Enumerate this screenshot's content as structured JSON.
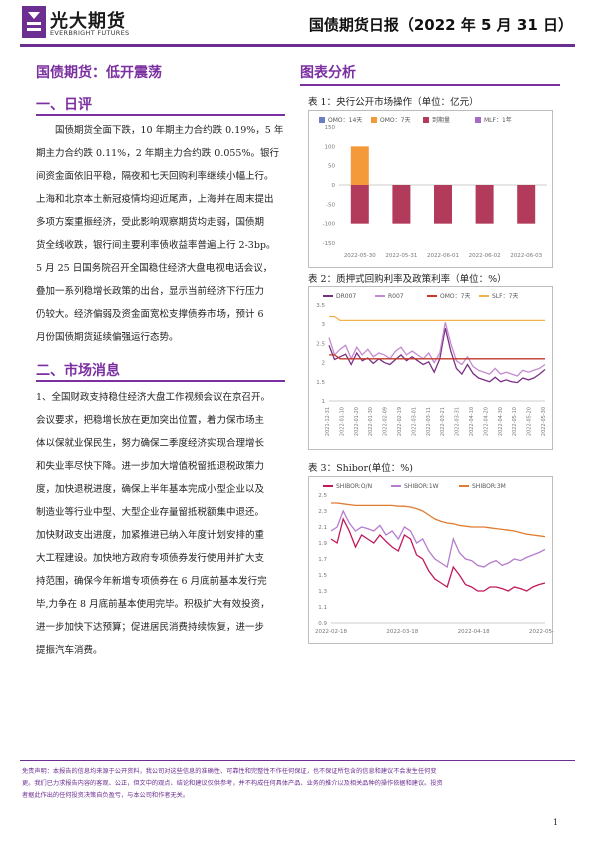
{
  "header": {
    "brand_cn": "光大期货",
    "brand_en": "EVERBRIGHT FUTURES",
    "report_title": "国债期货日报（2022 年 5 月 31 日）"
  },
  "main": {
    "title": "国债期货：低开震荡",
    "sections": [
      {
        "heading": "一、日评",
        "lines": [
          "国债期货全面下跌，10 年期主力合约跌 0.19%，5 年",
          "期主力合约跌 0.11%，2 年期主力合约跌 0.055%。银行",
          "间资金面依旧平稳，隔夜和七天回购利率继续小幅上行。",
          "上海和北京本土新冠疫情均迎近尾声，上海并在周末提出",
          "多项方案重振经济，受此影响观察期货均走弱，国债期",
          "货全线收跌，银行间主要利率债收益率普遍上行 2-3bp。",
          "5 月 25 日国务院召开全国稳住经济大盘电视电话会议，",
          "叠加一系列稳增长政策的出台，显示当前经济下行压力",
          "仍较大。经济偏弱及资金面宽松支撑债券市场，预计 6",
          "月份国债期货延续偏强运行态势。"
        ]
      },
      {
        "heading": "二、市场消息",
        "lines": [
          "1、全国财政支持稳住经济大盘工作视频会议在京召开。",
          "会议要求，把稳增长放在更加突出位置，着力保市场主",
          "体以保就业保民生，努力确保二季度经济实现合理增长",
          "和失业率尽快下降。进一步加大增值税留抵退税政策力",
          "度，加快退税进度，确保上半年基本完成小型企业以及",
          "制造业等行业中型、大型企业存量留抵税额集中退还。",
          "加快财政支出进度，加紧推进已纳入年度计划安排的重",
          "大工程建设。加快地方政府专项债券发行使用并扩大支",
          "持范围，确保今年新增专项债券在 6 月底前基本发行完",
          "毕,力争在 8 月底前基本使用完毕。积极扩大有效投资，",
          "进一步加快下达预算；促进居民消费持续恢复，进一步",
          "提振汽车消费。"
        ]
      }
    ]
  },
  "charts_heading": "图表分析",
  "chart_data": [
    {
      "caption": "表 1：央行公开市场操作（单位：亿元）",
      "type": "bar",
      "legend": [
        "OMO：14天",
        "OMO：7天",
        "到期量",
        "MLF：1年"
      ],
      "colors": [
        "#6b7fc2",
        "#f59a3a",
        "#b23a5b",
        "#a46bc4"
      ],
      "categories": [
        "2022-05-30",
        "2022-05-31",
        "2022-06-01",
        "2022-06-02",
        "2022-06-03"
      ],
      "series": [
        {
          "name": "OMO：7天",
          "values": [
            100,
            0,
            0,
            0,
            0
          ]
        },
        {
          "name": "到期量",
          "values": [
            -100,
            -100,
            -100,
            -100,
            -100
          ]
        }
      ],
      "yticks": [
        "150",
        "100",
        "50",
        "0",
        "-50",
        "-100",
        "-150"
      ],
      "ylim": [
        -150,
        150
      ]
    },
    {
      "caption": "表 2：质押式回购利率及政策利率（单位：%）",
      "type": "line",
      "legend": [
        "DR007",
        "R007",
        "OMO：7天",
        "SLF：7天"
      ],
      "colors": [
        "#7a2f85",
        "#c58ad1",
        "#c0392b",
        "#f2b14a"
      ],
      "yticks": [
        "3.5",
        "3",
        "2.5",
        "2",
        "1.5",
        "1"
      ],
      "ylim": [
        1,
        3.5
      ],
      "xticks": [
        "2021-12-31",
        "2022-01-10",
        "2022-01-20",
        "2022-01-30",
        "2022-02-09",
        "2022-02-19",
        "2022-03-01",
        "2022-03-11",
        "2022-03-21",
        "2022-03-31",
        "2022-04-10",
        "2022-04-20",
        "2022-04-30",
        "2022-05-10",
        "2022-05-20",
        "2022-05-30"
      ],
      "series": [
        {
          "name": "DR007",
          "values": [
            2.45,
            2.08,
            2.15,
            2.22,
            1.95,
            2.25,
            2.05,
            2.12,
            1.98,
            2.1,
            2.0,
            1.95,
            2.08,
            2.2,
            2.05,
            2.15,
            2.05,
            1.95,
            2.02,
            1.75,
            2.1,
            2.9,
            2.3,
            1.85,
            1.7,
            1.95,
            1.72,
            1.6,
            1.55,
            1.5,
            1.62,
            1.5,
            1.55,
            1.5,
            1.48,
            1.6,
            1.55,
            1.6,
            1.7,
            1.82
          ]
        },
        {
          "name": "R007",
          "values": [
            2.65,
            2.2,
            2.35,
            2.45,
            2.1,
            2.4,
            2.2,
            2.35,
            2.15,
            2.25,
            2.2,
            2.1,
            2.3,
            2.4,
            2.2,
            2.3,
            2.2,
            2.1,
            2.25,
            2.0,
            2.25,
            3.05,
            2.5,
            2.05,
            1.95,
            2.15,
            1.9,
            1.8,
            1.75,
            1.7,
            1.85,
            1.7,
            1.75,
            1.7,
            1.65,
            1.8,
            1.75,
            1.8,
            1.85,
            1.95
          ]
        },
        {
          "name": "OMO：7天",
          "values": [
            2.2,
            2.2,
            2.1,
            2.1,
            2.1,
            2.1,
            2.1,
            2.1,
            2.1,
            2.1,
            2.1,
            2.1,
            2.1,
            2.1,
            2.1,
            2.1,
            2.1,
            2.1,
            2.1,
            2.1,
            2.1,
            2.1,
            2.1,
            2.1,
            2.1,
            2.1,
            2.1,
            2.1,
            2.1,
            2.1,
            2.1,
            2.1,
            2.1,
            2.1,
            2.1,
            2.1,
            2.1,
            2.1,
            2.1,
            2.1
          ]
        },
        {
          "name": "SLF：7天",
          "values": [
            3.2,
            3.2,
            3.1,
            3.1,
            3.1,
            3.1,
            3.1,
            3.1,
            3.1,
            3.1,
            3.1,
            3.1,
            3.1,
            3.1,
            3.1,
            3.1,
            3.1,
            3.1,
            3.1,
            3.1,
            3.1,
            3.1,
            3.1,
            3.1,
            3.1,
            3.1,
            3.1,
            3.1,
            3.1,
            3.1,
            3.1,
            3.1,
            3.1,
            3.1,
            3.1,
            3.1,
            3.1,
            3.1,
            3.1,
            3.1
          ]
        }
      ]
    },
    {
      "caption": "表 3：Shibor(单位：%)",
      "type": "line",
      "legend": [
        "SHIBOR:O/N",
        "SHIBOR:1W",
        "SHIBOR:3M"
      ],
      "colors": [
        "#c2185b",
        "#b57ccf",
        "#e07b30"
      ],
      "yticks": [
        "2.5",
        "2.3",
        "2.1",
        "1.9",
        "1.7",
        "1.5",
        "1.3",
        "1.1",
        "0.9"
      ],
      "ylim": [
        0.9,
        2.5
      ],
      "xticks": [
        "2022-02-18",
        "2022-03-18",
        "2022-04-18",
        "2022-05-18"
      ],
      "series": [
        {
          "name": "SHIBOR:O/N",
          "values": [
            1.95,
            1.9,
            2.2,
            2.05,
            1.85,
            2.0,
            1.95,
            1.9,
            2.0,
            1.92,
            1.85,
            1.8,
            2.0,
            1.95,
            1.75,
            1.7,
            1.55,
            1.45,
            1.4,
            1.35,
            1.6,
            1.5,
            1.38,
            1.35,
            1.3,
            1.3,
            1.35,
            1.35,
            1.33,
            1.3,
            1.35,
            1.33,
            1.3,
            1.35,
            1.38,
            1.4
          ]
        },
        {
          "name": "SHIBOR:1W",
          "values": [
            2.05,
            2.1,
            2.3,
            2.15,
            2.05,
            2.1,
            2.08,
            2.05,
            2.12,
            2.0,
            2.05,
            1.95,
            2.1,
            2.05,
            1.9,
            1.95,
            1.8,
            1.7,
            1.65,
            1.6,
            1.95,
            1.78,
            1.7,
            1.68,
            1.62,
            1.6,
            1.65,
            1.68,
            1.62,
            1.65,
            1.7,
            1.68,
            1.72,
            1.75,
            1.78,
            1.82
          ]
        },
        {
          "name": "SHIBOR:3M",
          "values": [
            2.4,
            2.4,
            2.39,
            2.38,
            2.37,
            2.37,
            2.37,
            2.37,
            2.37,
            2.37,
            2.37,
            2.36,
            2.36,
            2.35,
            2.33,
            2.3,
            2.25,
            2.2,
            2.17,
            2.15,
            2.14,
            2.12,
            2.11,
            2.1,
            2.1,
            2.1,
            2.09,
            2.08,
            2.07,
            2.06,
            2.05,
            2.03,
            2.01,
            2.0,
            1.99,
            1.98
          ]
        }
      ]
    }
  ],
  "footer": {
    "disclaimer_lines": [
      "免责声明：本报告的信息均来源于公开资料，我公司对这些信息的准确性、可靠性和完整性不作任何保证，也不保证所包含的信息和建议不会发生任何变",
      "更。我们已力求报告内容的客观、公正，但文中的观点、结论和建议仅供参考，并不构成任何具体产品、业务的推介以及相关品种的操作依据和建议。投资",
      "者据此作出的任何投资决策自负盈亏，与本公司和作者无关。"
    ],
    "page_number": "1"
  }
}
